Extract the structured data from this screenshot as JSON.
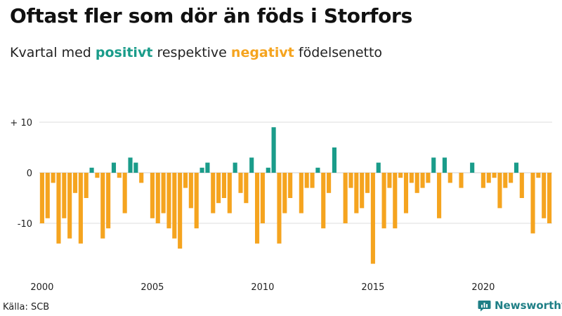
{
  "title": "Oftast fler som dör än föds i Storfors",
  "subtitle": {
    "prefix": "Kvartal med",
    "positive_word": "positivt",
    "middle": "respektive",
    "negative_word": "negativt",
    "suffix": "födelsenetto"
  },
  "source": "Källa: SCB",
  "brand": "Newsworthy",
  "colors": {
    "positive": "#1a9c8a",
    "negative": "#f5a41f",
    "brand": "#1f7f86"
  },
  "chart_data": {
    "type": "bar",
    "x_start_year": 2000,
    "periods_per_year": 4,
    "ylim": [
      -18,
      10
    ],
    "yticks": [
      10,
      0,
      -10
    ],
    "ytick_labels": [
      "+ 10",
      "0",
      "-10"
    ],
    "xtick_labels": [
      "2000",
      "2005",
      "2010",
      "2015",
      "2020"
    ],
    "xtick_years": [
      2000,
      2005,
      2010,
      2015,
      2020
    ],
    "grid": true,
    "values": [
      -10,
      -9,
      -2,
      -14,
      -9,
      -13,
      -4,
      -14,
      -5,
      1,
      -1,
      -13,
      -11,
      2,
      -1,
      -8,
      3,
      2,
      -2,
      0,
      -9,
      -10,
      -8,
      -11,
      -13,
      -15,
      -3,
      -7,
      -11,
      1,
      2,
      -8,
      -6,
      -5,
      -8,
      2,
      -4,
      -6,
      3,
      -14,
      -10,
      1,
      9,
      -14,
      -8,
      -5,
      0,
      -8,
      -3,
      -3,
      1,
      -11,
      -4,
      5,
      0,
      -10,
      -3,
      -8,
      -7,
      -4,
      -18,
      2,
      -11,
      -3,
      -11,
      -1,
      -8,
      -2,
      -4,
      -3,
      -2,
      3,
      -9,
      3,
      -2,
      0,
      -3,
      0,
      2,
      0,
      -3,
      -2,
      -1,
      -7,
      -3,
      -2,
      2,
      -5,
      0,
      -12,
      -1,
      -9,
      -10
    ]
  }
}
